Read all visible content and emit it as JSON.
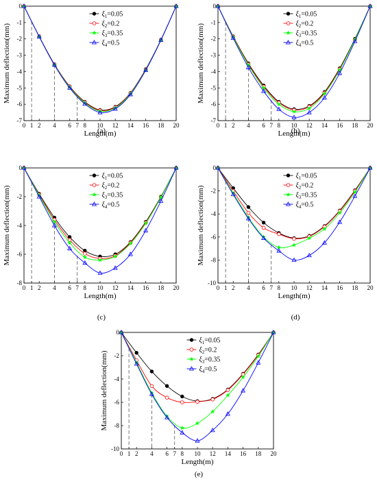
{
  "colors": {
    "s1": "#000000",
    "s2": "#ff0000",
    "s3": "#00ff00",
    "s4": "#0000ff",
    "guide": "#555555"
  },
  "chart_data": [
    {
      "type": "line",
      "panel_label": "(a)",
      "xlabel": "Length(m)",
      "ylabel": "Maximum deflection(mm)",
      "xlim": [
        0,
        20
      ],
      "ylim": [
        -7,
        0
      ],
      "xticks": [
        0,
        1,
        2,
        4,
        6,
        7,
        8,
        10,
        12,
        14,
        16,
        18,
        20
      ],
      "yticks": [
        0,
        -1,
        -2,
        -3,
        -4,
        -5,
        -6,
        -7
      ],
      "guide_x": [
        1,
        4,
        7
      ],
      "legend_position": "top-center",
      "x": [
        0,
        2,
        4,
        6,
        8,
        10,
        12,
        14,
        16,
        18,
        20
      ],
      "series": [
        {
          "sym": "ξ",
          "sub": "1",
          "value": "=0.05",
          "marker": "filled-circle",
          "color": "s1",
          "values": [
            0,
            -1.85,
            -3.55,
            -4.9,
            -5.85,
            -6.35,
            -6.15,
            -5.3,
            -3.85,
            -2.05,
            0
          ]
        },
        {
          "sym": "ξ",
          "sub": "2",
          "value": "=0.2",
          "marker": "open-circle",
          "color": "s2",
          "values": [
            0,
            -1.85,
            -3.56,
            -4.92,
            -5.88,
            -6.38,
            -6.18,
            -5.32,
            -3.87,
            -2.06,
            0
          ]
        },
        {
          "sym": "ξ",
          "sub": "3",
          "value": "=0.35",
          "marker": "star",
          "color": "s3",
          "values": [
            0,
            -1.86,
            -3.58,
            -4.96,
            -5.92,
            -6.43,
            -6.22,
            -5.35,
            -3.89,
            -2.07,
            0
          ]
        },
        {
          "sym": "ξ",
          "sub": "4",
          "value": "=0.5",
          "marker": "open-triangle",
          "color": "s4",
          "values": [
            0,
            -1.87,
            -3.6,
            -5.0,
            -5.98,
            -6.5,
            -6.28,
            -5.4,
            -3.92,
            -2.08,
            0
          ]
        }
      ]
    },
    {
      "type": "line",
      "panel_label": "(b)",
      "xlabel": "Length(m)",
      "ylabel": "Maximum deflection(mm)",
      "xlim": [
        0,
        20
      ],
      "ylim": [
        -7,
        0
      ],
      "xticks": [
        0,
        1,
        2,
        4,
        6,
        7,
        8,
        10,
        12,
        14,
        16,
        18,
        20
      ],
      "yticks": [
        0,
        -1,
        -2,
        -3,
        -4,
        -5,
        -6,
        -7
      ],
      "guide_x": [
        1,
        4,
        7
      ],
      "legend_position": "top-center",
      "x": [
        0,
        2,
        4,
        6,
        8,
        10,
        12,
        14,
        16,
        18,
        20
      ],
      "series": [
        {
          "sym": "ξ",
          "sub": "1",
          "value": "=0.05",
          "marker": "filled-circle",
          "color": "s1",
          "values": [
            0,
            -1.85,
            -3.5,
            -4.85,
            -5.85,
            -6.3,
            -6.1,
            -5.25,
            -3.8,
            -2.0,
            0
          ]
        },
        {
          "sym": "ξ",
          "sub": "2",
          "value": "=0.2",
          "marker": "open-circle",
          "color": "s2",
          "values": [
            0,
            -1.87,
            -3.55,
            -4.92,
            -5.9,
            -6.35,
            -6.15,
            -5.3,
            -3.85,
            -2.05,
            0
          ]
        },
        {
          "sym": "ξ",
          "sub": "3",
          "value": "=0.35",
          "marker": "star",
          "color": "s3",
          "values": [
            0,
            -1.9,
            -3.6,
            -5.0,
            -6.0,
            -6.45,
            -6.25,
            -5.35,
            -3.9,
            -2.05,
            0
          ]
        },
        {
          "sym": "ξ",
          "sub": "4",
          "value": "=0.5",
          "marker": "open-triangle",
          "color": "s4",
          "values": [
            0,
            -1.95,
            -3.75,
            -5.2,
            -6.3,
            -6.8,
            -6.5,
            -5.6,
            -4.1,
            -2.15,
            0
          ]
        }
      ]
    },
    {
      "type": "line",
      "panel_label": "(c)",
      "xlabel": "Length(m)",
      "ylabel": "Maximum deflection(mm)",
      "xlim": [
        0,
        20
      ],
      "ylim": [
        -8,
        0
      ],
      "xticks": [
        0,
        1,
        2,
        4,
        6,
        7,
        8,
        10,
        12,
        14,
        16,
        18,
        20
      ],
      "yticks": [
        0,
        -2,
        -4,
        -6,
        -8
      ],
      "guide_x": [
        1,
        4,
        7
      ],
      "legend_position": "top-center",
      "x": [
        0,
        2,
        4,
        6,
        8,
        10,
        12,
        14,
        16,
        18,
        20
      ],
      "series": [
        {
          "sym": "ξ",
          "sub": "1",
          "value": "=0.05",
          "marker": "filled-circle",
          "color": "s1",
          "values": [
            0,
            -1.8,
            -3.45,
            -4.8,
            -5.75,
            -6.15,
            -6.0,
            -5.15,
            -3.75,
            -2.0,
            0
          ]
        },
        {
          "sym": "ξ",
          "sub": "2",
          "value": "=0.2",
          "marker": "open-circle",
          "color": "s2",
          "values": [
            0,
            -1.85,
            -3.6,
            -5.0,
            -5.95,
            -6.3,
            -6.1,
            -5.2,
            -3.8,
            -2.05,
            0
          ]
        },
        {
          "sym": "ξ",
          "sub": "3",
          "value": "=0.35",
          "marker": "star",
          "color": "s3",
          "values": [
            0,
            -1.9,
            -3.75,
            -5.2,
            -6.2,
            -6.4,
            -6.15,
            -5.25,
            -3.85,
            -2.05,
            0
          ]
        },
        {
          "sym": "ξ",
          "sub": "4",
          "value": "=0.5",
          "marker": "open-triangle",
          "color": "s4",
          "values": [
            0,
            -2.0,
            -4.0,
            -5.6,
            -6.6,
            -7.3,
            -6.95,
            -6.0,
            -4.35,
            -2.3,
            0
          ]
        }
      ]
    },
    {
      "type": "line",
      "panel_label": "(d)",
      "xlabel": "Length(m)",
      "ylabel": "Maximum deflection(mm)",
      "xlim": [
        0,
        20
      ],
      "ylim": [
        -10,
        0
      ],
      "xticks": [
        0,
        1,
        2,
        4,
        6,
        7,
        8,
        10,
        12,
        14,
        16,
        18,
        20
      ],
      "yticks": [
        0,
        -2,
        -4,
        -6,
        -8,
        -10
      ],
      "guide_x": [
        1,
        4,
        7
      ],
      "legend_position": "top-center",
      "x": [
        0,
        2,
        4,
        6,
        8,
        10,
        12,
        14,
        16,
        18,
        20
      ],
      "series": [
        {
          "sym": "ξ",
          "sub": "1",
          "value": "=0.05",
          "marker": "filled-circle",
          "color": "s1",
          "values": [
            0,
            -1.75,
            -3.4,
            -4.75,
            -5.65,
            -6.1,
            -5.9,
            -5.05,
            -3.7,
            -1.95,
            0
          ]
        },
        {
          "sym": "ξ",
          "sub": "2",
          "value": "=0.2",
          "marker": "open-circle",
          "color": "s2",
          "values": [
            0,
            -2.0,
            -3.9,
            -5.2,
            -5.75,
            -6.15,
            -5.95,
            -5.1,
            -3.75,
            -2.0,
            0
          ]
        },
        {
          "sym": "ξ",
          "sub": "3",
          "value": "=0.35",
          "marker": "star",
          "color": "s3",
          "values": [
            0,
            -2.2,
            -4.3,
            -6.0,
            -6.9,
            -6.7,
            -6.1,
            -5.3,
            -3.9,
            -2.1,
            0
          ]
        },
        {
          "sym": "ξ",
          "sub": "4",
          "value": "=0.5",
          "marker": "open-triangle",
          "color": "s4",
          "values": [
            0,
            -2.3,
            -4.4,
            -6.1,
            -7.2,
            -8.0,
            -7.6,
            -6.5,
            -4.7,
            -2.45,
            0
          ]
        }
      ]
    },
    {
      "type": "line",
      "panel_label": "(e)",
      "xlabel": "Length(m)",
      "ylabel": "Maximum deflection(mm)",
      "xlim": [
        0,
        20
      ],
      "ylim": [
        -10,
        0
      ],
      "xticks": [
        0,
        1,
        2,
        4,
        6,
        7,
        8,
        10,
        12,
        14,
        16,
        18,
        20
      ],
      "yticks": [
        0,
        -2,
        -4,
        -6,
        -8,
        -10
      ],
      "guide_x": [
        1,
        4,
        7
      ],
      "legend_position": "top-center",
      "x": [
        0,
        2,
        4,
        6,
        8,
        10,
        12,
        14,
        16,
        18,
        20
      ],
      "series": [
        {
          "sym": "ξ",
          "sub": "1",
          "value": "=0.05",
          "marker": "filled-circle",
          "color": "s1",
          "values": [
            0,
            -1.75,
            -3.35,
            -4.6,
            -5.5,
            -5.9,
            -5.7,
            -4.9,
            -3.55,
            -1.9,
            0
          ]
        },
        {
          "sym": "ξ",
          "sub": "2",
          "value": "=0.2",
          "marker": "open-circle",
          "color": "s2",
          "values": [
            0,
            -2.4,
            -4.6,
            -5.6,
            -6.0,
            -5.95,
            -5.75,
            -4.95,
            -3.6,
            -1.95,
            0
          ]
        },
        {
          "sym": "ξ",
          "sub": "3",
          "value": "=0.35",
          "marker": "star",
          "color": "s3",
          "values": [
            0,
            -2.6,
            -5.2,
            -7.2,
            -8.2,
            -7.8,
            -6.8,
            -5.4,
            -3.85,
            -2.05,
            0
          ]
        },
        {
          "sym": "ξ",
          "sub": "4",
          "value": "=0.5",
          "marker": "open-triangle",
          "color": "s4",
          "values": [
            0,
            -2.7,
            -5.3,
            -7.3,
            -8.6,
            -9.3,
            -8.4,
            -7.0,
            -5.0,
            -2.6,
            0
          ]
        }
      ]
    }
  ]
}
